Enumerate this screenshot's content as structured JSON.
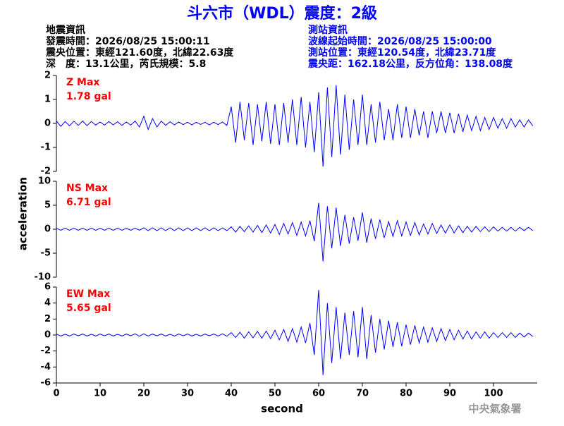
{
  "title": "斗六市（WDL）震度：2級",
  "info_left": [
    "地震資訊",
    "發震時間：2026/08/25 15:00:11",
    "震央位置：東經121.60度，北緯22.63度",
    "深　度：13.1公里，芮氏規模：5.8"
  ],
  "info_right": [
    "測站資訊",
    "波線起始時間：2026/08/25 15:00:00",
    "測站位置：東經120.54度，北緯23.71度",
    "震央距：162.18公里，反方位角：138.08度"
  ],
  "ylabel": "acceleration",
  "xlabel": "second",
  "watermark": "中央氣象署",
  "chart_data": [
    {
      "type": "line",
      "annotations": [
        "Z Max",
        "1.78 gal"
      ],
      "color": "#0000ff",
      "annotation_color": "#ff0000",
      "xlim": [
        0,
        110
      ],
      "ylim": [
        -2,
        2
      ],
      "yticks": [
        -2,
        -1,
        0,
        1,
        2
      ],
      "x": [
        0,
        1,
        2,
        3,
        4,
        5,
        6,
        7,
        8,
        9,
        10,
        11,
        12,
        13,
        14,
        15,
        16,
        17,
        18,
        19,
        20,
        21,
        22,
        23,
        24,
        25,
        26,
        27,
        28,
        29,
        30,
        31,
        32,
        33,
        34,
        35,
        36,
        37,
        38,
        39,
        40,
        41,
        42,
        43,
        44,
        45,
        46,
        47,
        48,
        49,
        50,
        51,
        52,
        53,
        54,
        55,
        56,
        57,
        58,
        59,
        60,
        61,
        62,
        63,
        64,
        65,
        66,
        67,
        68,
        69,
        70,
        71,
        72,
        73,
        74,
        75,
        76,
        77,
        78,
        79,
        80,
        81,
        82,
        83,
        84,
        85,
        86,
        87,
        88,
        89,
        90,
        91,
        92,
        93,
        94,
        95,
        96,
        97,
        98,
        99,
        100,
        101,
        102,
        103,
        104,
        105,
        106,
        107,
        108,
        109
      ],
      "values": [
        0.1,
        -0.12,
        0.08,
        -0.1,
        0.09,
        -0.08,
        0.1,
        -0.09,
        0.08,
        -0.07,
        0.06,
        -0.07,
        0.08,
        -0.06,
        0.07,
        -0.08,
        0.06,
        -0.07,
        0.1,
        -0.15,
        0.3,
        -0.25,
        0.2,
        -0.15,
        0.1,
        -0.08,
        0.07,
        -0.06,
        0.06,
        -0.05,
        0.05,
        -0.06,
        0.05,
        -0.04,
        0.05,
        -0.06,
        0.05,
        -0.05,
        0.06,
        -0.08,
        0.7,
        -0.8,
        0.9,
        -0.7,
        0.85,
        -0.9,
        0.8,
        -0.75,
        0.9,
        -0.85,
        0.8,
        -0.9,
        0.85,
        -0.8,
        1.0,
        -0.9,
        1.1,
        -1.0,
        0.9,
        -1.2,
        1.3,
        -1.8,
        1.5,
        -1.4,
        1.6,
        -1.3,
        1.2,
        -1.1,
        1.0,
        -0.9,
        1.2,
        -0.9,
        0.8,
        -0.8,
        0.9,
        -0.7,
        0.6,
        -0.7,
        0.8,
        -0.6,
        0.7,
        -0.6,
        0.6,
        -0.5,
        0.5,
        -0.6,
        0.5,
        -0.4,
        0.5,
        -0.4,
        0.45,
        -0.4,
        0.4,
        -0.35,
        0.35,
        -0.3,
        0.3,
        -0.3,
        0.25,
        -0.25,
        0.25,
        -0.2,
        0.2,
        -0.2,
        0.2,
        -0.15,
        0.15,
        -0.15,
        0.15,
        -0.1
      ]
    },
    {
      "type": "line",
      "annotations": [
        "NS Max",
        "6.71 gal"
      ],
      "color": "#0000ff",
      "annotation_color": "#ff0000",
      "xlim": [
        0,
        110
      ],
      "ylim": [
        -10,
        10
      ],
      "yticks": [
        -10,
        -5,
        0,
        5,
        10
      ],
      "x": [
        0,
        1,
        2,
        3,
        4,
        5,
        6,
        7,
        8,
        9,
        10,
        11,
        12,
        13,
        14,
        15,
        16,
        17,
        18,
        19,
        20,
        21,
        22,
        23,
        24,
        25,
        26,
        27,
        28,
        29,
        30,
        31,
        32,
        33,
        34,
        35,
        36,
        37,
        38,
        39,
        40,
        41,
        42,
        43,
        44,
        45,
        46,
        47,
        48,
        49,
        50,
        51,
        52,
        53,
        54,
        55,
        56,
        57,
        58,
        59,
        60,
        61,
        62,
        63,
        64,
        65,
        66,
        67,
        68,
        69,
        70,
        71,
        72,
        73,
        74,
        75,
        76,
        77,
        78,
        79,
        80,
        81,
        82,
        83,
        84,
        85,
        86,
        87,
        88,
        89,
        90,
        91,
        92,
        93,
        94,
        95,
        96,
        97,
        98,
        99,
        100,
        101,
        102,
        103,
        104,
        105,
        106,
        107,
        108,
        109
      ],
      "values": [
        0.2,
        -0.2,
        0.2,
        -0.2,
        0.2,
        -0.2,
        0.2,
        -0.2,
        0.2,
        -0.2,
        0.2,
        -0.2,
        0.2,
        -0.2,
        0.2,
        -0.2,
        0.2,
        -0.2,
        0.2,
        -0.2,
        0.3,
        -0.3,
        0.3,
        -0.3,
        0.3,
        -0.3,
        0.3,
        -0.3,
        0.3,
        -0.3,
        0.3,
        -0.3,
        0.3,
        -0.3,
        0.3,
        -0.3,
        0.3,
        -0.3,
        0.3,
        -0.3,
        0.5,
        -0.6,
        0.6,
        -0.5,
        0.7,
        -0.6,
        0.8,
        -0.7,
        0.9,
        -0.8,
        1.0,
        -1.1,
        1.2,
        -1.0,
        1.4,
        -1.3,
        1.5,
        -1.4,
        1.8,
        -2.5,
        5.5,
        -6.7,
        4.8,
        -4.0,
        4.5,
        -3.5,
        3.0,
        -3.0,
        2.5,
        -2.4,
        3.5,
        -2.8,
        2.2,
        -2.0,
        2.0,
        -1.8,
        1.6,
        -1.5,
        1.8,
        -1.4,
        1.5,
        -1.3,
        1.4,
        -1.2,
        1.1,
        -1.0,
        1.2,
        -0.9,
        0.9,
        -0.8,
        0.9,
        -0.8,
        0.7,
        -0.7,
        0.6,
        -0.6,
        0.6,
        -0.5,
        0.5,
        -0.5,
        0.5,
        -0.4,
        0.4,
        -0.4,
        0.4,
        -0.4,
        0.4,
        -0.3,
        0.4,
        -0.3
      ]
    },
    {
      "type": "line",
      "annotations": [
        "EW Max",
        "5.65 gal"
      ],
      "color": "#0000ff",
      "annotation_color": "#ff0000",
      "xlim": [
        0,
        110
      ],
      "ylim": [
        -6,
        6
      ],
      "yticks": [
        -6,
        -4,
        -2,
        0,
        2,
        4,
        6
      ],
      "xticks": [
        0,
        10,
        20,
        30,
        40,
        50,
        60,
        70,
        80,
        90,
        100
      ],
      "x": [
        0,
        1,
        2,
        3,
        4,
        5,
        6,
        7,
        8,
        9,
        10,
        11,
        12,
        13,
        14,
        15,
        16,
        17,
        18,
        19,
        20,
        21,
        22,
        23,
        24,
        25,
        26,
        27,
        28,
        29,
        30,
        31,
        32,
        33,
        34,
        35,
        36,
        37,
        38,
        39,
        40,
        41,
        42,
        43,
        44,
        45,
        46,
        47,
        48,
        49,
        50,
        51,
        52,
        53,
        54,
        55,
        56,
        57,
        58,
        59,
        60,
        61,
        62,
        63,
        64,
        65,
        66,
        67,
        68,
        69,
        70,
        71,
        72,
        73,
        74,
        75,
        76,
        77,
        78,
        79,
        80,
        81,
        82,
        83,
        84,
        85,
        86,
        87,
        88,
        89,
        90,
        91,
        92,
        93,
        94,
        95,
        96,
        97,
        98,
        99,
        100,
        101,
        102,
        103,
        104,
        105,
        106,
        107,
        108,
        109
      ],
      "values": [
        0.12,
        -0.12,
        0.1,
        -0.12,
        0.12,
        -0.1,
        0.12,
        -0.12,
        0.1,
        -0.12,
        0.12,
        -0.1,
        0.12,
        -0.12,
        0.1,
        -0.12,
        0.12,
        -0.1,
        0.15,
        -0.15,
        0.15,
        -0.12,
        0.12,
        -0.1,
        0.12,
        -0.12,
        0.1,
        -0.12,
        0.12,
        -0.1,
        0.12,
        -0.12,
        0.1,
        -0.12,
        0.12,
        -0.1,
        0.12,
        -0.12,
        0.15,
        -0.15,
        0.3,
        -0.3,
        0.35,
        -0.4,
        0.4,
        -0.35,
        0.45,
        -0.4,
        0.5,
        -0.45,
        0.6,
        -0.6,
        0.7,
        -0.8,
        0.8,
        -0.9,
        1.0,
        -1.0,
        1.5,
        -2.5,
        5.65,
        -5.0,
        4.0,
        -3.5,
        3.5,
        -3.0,
        2.8,
        -2.5,
        3.0,
        -2.8,
        3.5,
        -3.0,
        2.5,
        -2.2,
        2.0,
        -1.8,
        1.8,
        -1.5,
        1.6,
        -1.4,
        1.3,
        -1.2,
        1.2,
        -1.0,
        1.0,
        -0.9,
        0.9,
        -0.8,
        0.8,
        -0.7,
        0.7,
        -0.6,
        0.6,
        -0.5,
        0.5,
        -0.5,
        0.4,
        -0.4,
        0.4,
        -0.4,
        0.3,
        -0.3,
        0.3,
        -0.3,
        0.3,
        -0.3,
        0.25,
        -0.25,
        0.25,
        -0.2
      ]
    }
  ]
}
